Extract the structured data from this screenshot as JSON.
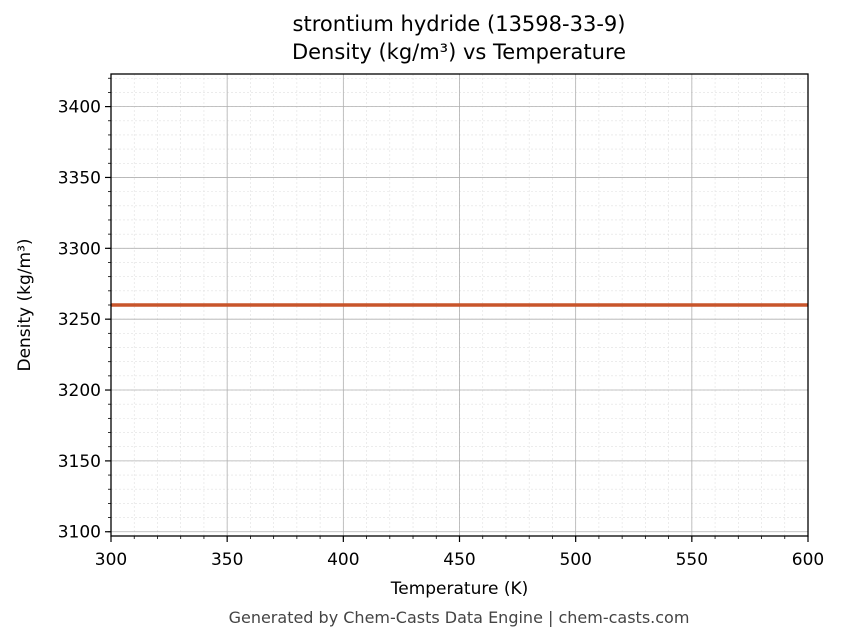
{
  "title_line1": "strontium hydride (13598-33-9)",
  "title_line2": "Density (kg/m³) vs Temperature",
  "footer": "Generated by Chem-Casts Data Engine | chem-casts.com",
  "colors": {
    "line": "#c8552b",
    "grid_major": "#b0b0b0",
    "grid_minor": "#e0e0e0"
  },
  "chart_data": {
    "type": "line",
    "title": "strontium hydride (13598-33-9)\nDensity (kg/m³) vs Temperature",
    "xlabel": "Temperature (K)",
    "ylabel": "Density (kg/m³)",
    "xlim": [
      300,
      600
    ],
    "ylim": [
      3097,
      3423
    ],
    "xticks": [
      300,
      350,
      400,
      450,
      500,
      550,
      600
    ],
    "yticks": [
      3100,
      3150,
      3200,
      3250,
      3300,
      3350,
      3400
    ],
    "grid": true,
    "series": [
      {
        "name": "Density",
        "x": [
          300,
          350,
          400,
          450,
          500,
          550,
          600
        ],
        "values": [
          3260,
          3260,
          3260,
          3260,
          3260,
          3260,
          3260
        ]
      }
    ]
  }
}
